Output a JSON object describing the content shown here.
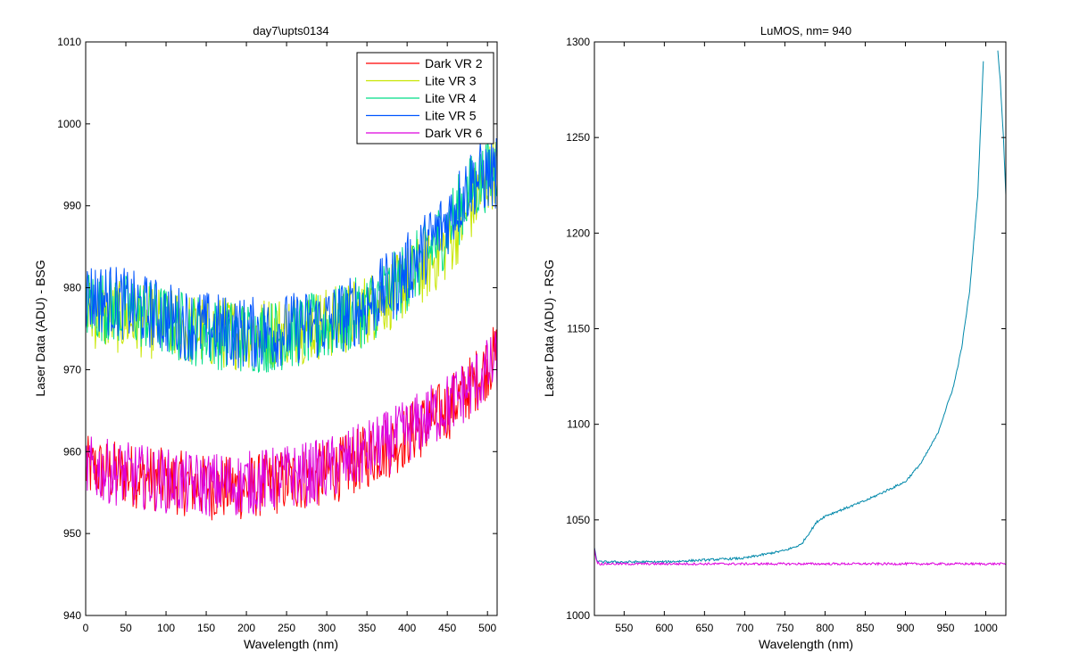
{
  "chart_data": [
    {
      "type": "line",
      "title": "day7\\upts0134",
      "xlabel": "Wavelength (nm)",
      "ylabel": "Laser Data (ADU) - BSG",
      "xlim": [
        0,
        512
      ],
      "ylim": [
        940,
        1010
      ],
      "xticks": [
        0,
        50,
        100,
        150,
        200,
        250,
        300,
        350,
        400,
        450,
        500
      ],
      "yticks": [
        940,
        950,
        960,
        970,
        980,
        990,
        1000,
        1010
      ],
      "grid": false,
      "legend": "top-right",
      "x": [
        0,
        32,
        64,
        96,
        128,
        160,
        192,
        224,
        256,
        288,
        320,
        352,
        384,
        416,
        448,
        480,
        512
      ],
      "series": [
        {
          "name": "Dark VR 2",
          "color": "#ff0000",
          "noise": 4,
          "values": [
            958,
            957.5,
            957,
            956.5,
            956,
            955.5,
            955.5,
            956,
            956.5,
            957,
            958,
            959.5,
            961,
            963,
            965,
            968,
            972
          ]
        },
        {
          "name": "Lite VR 3",
          "color": "#c8e600",
          "noise": 4.5,
          "values": [
            977,
            976.5,
            976,
            975.5,
            975,
            974.5,
            974.5,
            974.5,
            975,
            975.5,
            976,
            977.5,
            979.5,
            982,
            985,
            990,
            995
          ]
        },
        {
          "name": "Lite VR 4",
          "color": "#00dd88",
          "noise": 4.5,
          "values": [
            978,
            977.5,
            977,
            976,
            975,
            974.5,
            974,
            974,
            974.5,
            975,
            976,
            977.5,
            980,
            983,
            987,
            992,
            995
          ]
        },
        {
          "name": "Lite VR 5",
          "color": "#0055ff",
          "noise": 4.5,
          "values": [
            979,
            978.5,
            977.5,
            976.5,
            975.5,
            975,
            974.5,
            974.5,
            975,
            975.5,
            976.5,
            978,
            980.5,
            984,
            988,
            993,
            994
          ]
        },
        {
          "name": "Dark VR 6",
          "color": "#dd00dd",
          "noise": 4,
          "values": [
            958,
            957.5,
            957,
            956.5,
            956,
            956,
            956,
            956.5,
            957,
            957.5,
            958.5,
            960,
            961.5,
            963.5,
            965.5,
            968,
            971
          ]
        }
      ]
    },
    {
      "type": "line",
      "title": "LuMOS, nm= 940",
      "xlabel": "Wavelength (nm)",
      "ylabel": "Laser Data (ADU) - RSG",
      "xlim": [
        513,
        1025
      ],
      "ylim": [
        1000,
        1300
      ],
      "xticks": [
        550,
        600,
        650,
        700,
        750,
        800,
        850,
        900,
        950,
        1000
      ],
      "yticks": [
        1000,
        1050,
        1100,
        1150,
        1200,
        1250,
        1300
      ],
      "grid": false,
      "x": [
        513,
        516,
        520,
        600,
        700,
        750,
        770,
        780,
        790,
        800,
        850,
        900,
        920,
        940,
        960,
        970,
        980,
        990,
        997,
        1005,
        1010,
        1014,
        1018,
        1022,
        1025
      ],
      "series": [
        {
          "color": "#0088aa",
          "values": [
            1035,
            1029,
            1028,
            1028,
            1030,
            1034,
            1037,
            1043,
            1049,
            1052,
            1060,
            1070,
            1080,
            1095,
            1120,
            1140,
            1170,
            1220,
            1290,
            null,
            null,
            1300,
            1280,
            1250,
            1220
          ]
        },
        {
          "color": "#dd00dd",
          "values": [
            1035,
            1028,
            1027,
            1027,
            1027,
            1027,
            1027,
            1027,
            1027,
            1027,
            1027,
            1027,
            1027,
            1027,
            1027,
            1027,
            1027,
            1027,
            1027,
            1027,
            1027,
            1027,
            1027,
            1027,
            1027
          ]
        }
      ]
    }
  ]
}
